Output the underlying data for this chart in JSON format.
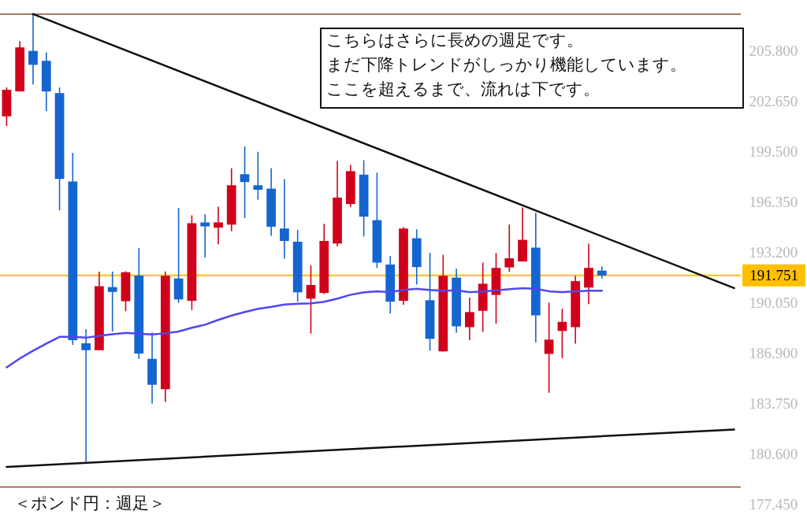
{
  "chart_data": {
    "type": "candlestick",
    "categories": [
      null,
      null,
      null,
      null,
      null,
      null,
      null,
      null,
      null,
      null,
      null,
      null,
      null,
      null,
      null,
      null,
      null,
      null,
      null,
      null,
      null,
      null,
      null,
      null,
      null,
      null,
      null,
      null,
      null,
      null,
      null,
      null,
      null,
      null,
      null,
      null,
      null,
      null,
      null,
      null,
      null,
      null,
      null,
      null,
      null,
      null,
      null,
      null,
      null,
      null,
      null,
      null,
      null,
      null,
      null,
      null
    ],
    "ohlc": [
      [
        201.68,
        203.49,
        201.08,
        203.35
      ],
      [
        203.24,
        206.38,
        203.24,
        205.99
      ],
      [
        205.77,
        208.07,
        203.67,
        204.9
      ],
      [
        205.15,
        205.68,
        202.01,
        203.24
      ],
      [
        203.14,
        203.49,
        195.81,
        197.78
      ],
      [
        197.61,
        199.4,
        187.41,
        187.7
      ],
      [
        187.51,
        188.39,
        180.11,
        187.08
      ],
      [
        187.08,
        191.99,
        187.08,
        191.08
      ],
      [
        191.02,
        191.99,
        188.25,
        190.72
      ],
      [
        190.14,
        192.0,
        189.51,
        191.95
      ],
      [
        191.74,
        193.45,
        186.54,
        186.87
      ],
      [
        186.54,
        188.19,
        183.75,
        184.92
      ],
      [
        184.64,
        192.0,
        183.85,
        191.72
      ],
      [
        191.56,
        195.96,
        190.04,
        190.25
      ],
      [
        190.16,
        195.5,
        189.59,
        195.01
      ],
      [
        195.06,
        195.58,
        192.87,
        194.81
      ],
      [
        194.73,
        196.04,
        193.69,
        195.06
      ],
      [
        194.92,
        198.45,
        194.51,
        197.38
      ],
      [
        198.07,
        199.8,
        195.33,
        197.58
      ],
      [
        197.38,
        199.47,
        196.48,
        197.1
      ],
      [
        197.17,
        198.45,
        194.22,
        194.79
      ],
      [
        194.68,
        197.76,
        192.79,
        193.9
      ],
      [
        193.85,
        194.59,
        190.11,
        190.69
      ],
      [
        190.3,
        192.38,
        188.12,
        191.15
      ],
      [
        190.66,
        194.97,
        190.58,
        193.9
      ],
      [
        193.74,
        198.9,
        193.56,
        196.61
      ],
      [
        196.21,
        198.65,
        196.02,
        198.26
      ],
      [
        198.04,
        198.95,
        194.18,
        195.42
      ],
      [
        195.2,
        198.17,
        192.22,
        192.55
      ],
      [
        192.43,
        192.95,
        189.38,
        190.11
      ],
      [
        190.16,
        194.76,
        189.92,
        194.68
      ],
      [
        194.07,
        194.63,
        191.18,
        192.27
      ],
      [
        190.2,
        193.17,
        187.05,
        187.79
      ],
      [
        187.01,
        193.04,
        187.0,
        191.72
      ],
      [
        191.61,
        192.17,
        188.17,
        188.57
      ],
      [
        188.52,
        190.36,
        187.7,
        189.46
      ],
      [
        189.54,
        192.55,
        188.23,
        191.23
      ],
      [
        190.53,
        193.15,
        188.74,
        192.22
      ],
      [
        192.25,
        194.92,
        191.97,
        192.82
      ],
      [
        192.62,
        195.99,
        192.62,
        193.97
      ],
      [
        193.48,
        195.66,
        187.57,
        189.26
      ],
      [
        186.85,
        190.05,
        184.42,
        187.74
      ],
      [
        188.28,
        189.67,
        186.59,
        188.85
      ],
      [
        188.52,
        191.72,
        187.49,
        191.39
      ],
      [
        190.99,
        193.73,
        189.95,
        192.22
      ],
      [
        192.05,
        192.3,
        191.56,
        191.75
      ],
      null,
      null,
      null,
      null,
      null,
      null,
      null,
      null,
      null,
      null
    ],
    "colors": [
      "#d0021b",
      "#d0021b",
      "#1565d0",
      "#1565d0",
      "#1565d0",
      "#1565d0",
      "#1565d0",
      "#d0021b",
      "#1565d0",
      "#d0021b",
      "#1565d0",
      "#1565d0",
      "#d0021b",
      "#1565d0",
      "#d0021b",
      "#1565d0",
      "#d0021b",
      "#d0021b",
      "#1565d0",
      "#1565d0",
      "#1565d0",
      "#1565d0",
      "#1565d0",
      "#d0021b",
      "#d0021b",
      "#d0021b",
      "#d0021b",
      "#1565d0",
      "#1565d0",
      "#1565d0",
      "#d0021b",
      "#1565d0",
      "#1565d0",
      "#d0021b",
      "#1565d0",
      "#d0021b",
      "#d0021b",
      "#d0021b",
      "#d0021b",
      "#d0021b",
      "#1565d0",
      "#d0021b",
      "#d0021b",
      "#d0021b",
      "#d0021b",
      "#1565d0",
      null,
      null,
      null,
      null,
      null,
      null,
      null,
      null,
      null,
      null
    ],
    "series": [
      {
        "type": "line",
        "color": "#5046f0",
        "values": [
          186.01,
          186.56,
          187.05,
          187.49,
          187.91,
          187.91,
          187.86,
          187.98,
          188.08,
          188.16,
          188.11,
          188.06,
          188.13,
          188.25,
          188.48,
          188.67,
          188.97,
          189.24,
          189.46,
          189.66,
          189.78,
          189.93,
          189.98,
          190.0,
          190.1,
          190.3,
          190.54,
          190.69,
          190.76,
          190.71,
          190.84,
          190.91,
          190.84,
          190.79,
          190.82,
          190.71,
          190.74,
          190.82,
          190.89,
          190.95,
          190.91,
          190.76,
          190.7,
          190.76,
          190.79,
          190.79,
          null,
          null,
          null,
          null,
          null,
          null,
          null,
          null,
          null,
          null
        ]
      },
      {
        "type": "line",
        "color": "#111111",
        "values": [
          null,
          null,
          208.07,
          null,
          null,
          null,
          null,
          null,
          null,
          null,
          null,
          null,
          null,
          null,
          null,
          null,
          null,
          null,
          null,
          null,
          null,
          null,
          null,
          null,
          null,
          null,
          null,
          null,
          null,
          null,
          null,
          null,
          null,
          null,
          null,
          null,
          null,
          null,
          null,
          null,
          null,
          null,
          null,
          null,
          null,
          null,
          null,
          null,
          null,
          null,
          null,
          null,
          null,
          null,
          null,
          190.96
        ]
      },
      {
        "type": "line",
        "color": "#111111",
        "values": [
          179.79,
          null,
          null,
          null,
          null,
          null,
          null,
          null,
          null,
          null,
          null,
          null,
          null,
          null,
          null,
          null,
          null,
          null,
          null,
          null,
          null,
          null,
          null,
          null,
          null,
          null,
          null,
          null,
          null,
          null,
          null,
          null,
          null,
          null,
          null,
          null,
          null,
          null,
          null,
          null,
          null,
          null,
          null,
          null,
          null,
          null,
          null,
          null,
          null,
          null,
          null,
          null,
          null,
          null,
          null,
          182.13
        ]
      }
    ],
    "ylim": [
      176.1,
      208.95
    ],
    "yticks": [
      {
        "value": 177.45,
        "label": "177.450"
      },
      {
        "value": 180.6,
        "label": "180.600"
      },
      {
        "value": 183.75,
        "label": "183.750"
      },
      {
        "value": 186.9,
        "label": "186.900"
      },
      {
        "value": 190.05,
        "label": "190.050"
      },
      {
        "value": 193.2,
        "label": "193.200"
      },
      {
        "value": 196.35,
        "label": "196.350"
      },
      {
        "value": 199.5,
        "label": "199.500"
      },
      {
        "value": 202.65,
        "label": "202.650"
      },
      {
        "value": 205.8,
        "label": "205.800"
      }
    ],
    "ref_lines": [
      {
        "axis": "y",
        "value": 208.06,
        "color": "#8b4a2b"
      },
      {
        "axis": "y",
        "value": 178.53,
        "color": "#8b4a2b"
      },
      {
        "axis": "y",
        "value": 191.751,
        "label": "191.751",
        "color": "#ffc000"
      }
    ],
    "annotations": [
      "こちらはさらに長めの週足です。",
      "まだ下降トレンドがしっかり機能しています。",
      "ここを超えるまで、流れは下です。",
      "＜ポンド円：週足＞"
    ],
    "tick_labels": "y"
  }
}
